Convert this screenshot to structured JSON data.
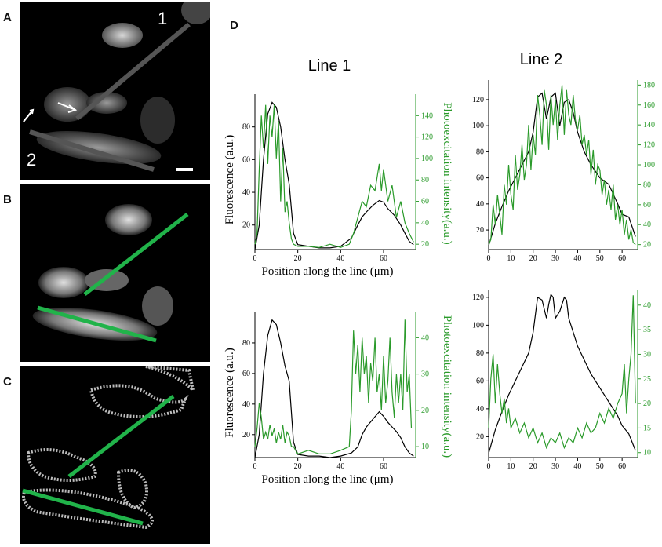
{
  "panels": {
    "a": {
      "label": "A",
      "line1_label": "1",
      "line2_label": "2"
    },
    "b": {
      "label": "B"
    },
    "c": {
      "label": "C"
    },
    "d": {
      "label": "D"
    }
  },
  "colors": {
    "green": "#2a9a2a",
    "line_green": "#21b34a",
    "black": "#000000",
    "gray_line": "#555555"
  },
  "chart_data": [
    {
      "type": "line",
      "id": "top-left",
      "title": "Line 1",
      "xlabel": "Position along the line (μm)",
      "ylabel": "Fluorescence (a.u.)",
      "y2label": "Photoexcitation intensity(a.u.)",
      "xlim": [
        0,
        75
      ],
      "ylim": [
        5,
        100
      ],
      "y2lim": [
        15,
        160
      ],
      "xticks": [
        "0",
        "20",
        "40",
        "60"
      ],
      "yticks": [
        "20",
        "40",
        "60",
        "80"
      ],
      "y2ticks": [
        "20",
        "40",
        "60",
        "80",
        "100",
        "120",
        "140"
      ],
      "series": [
        {
          "axis": "left",
          "color": "black",
          "x": [
            0,
            2,
            4,
            6,
            8,
            10,
            12,
            14,
            16,
            18,
            20,
            25,
            30,
            35,
            40,
            45,
            48,
            50,
            52,
            55,
            58,
            60,
            62,
            65,
            68,
            70,
            72,
            74
          ],
          "values": [
            5,
            20,
            60,
            88,
            95,
            92,
            80,
            60,
            45,
            15,
            8,
            7,
            6,
            6,
            7,
            12,
            20,
            25,
            28,
            32,
            35,
            34,
            30,
            26,
            20,
            15,
            10,
            8
          ]
        },
        {
          "axis": "right",
          "color": "green",
          "x": [
            0,
            1,
            2,
            3,
            4,
            5,
            6,
            7,
            8,
            9,
            10,
            11,
            12,
            13,
            14,
            15,
            16,
            17,
            18,
            20,
            25,
            30,
            35,
            40,
            44,
            46,
            48,
            50,
            52,
            54,
            56,
            58,
            59,
            60,
            62,
            64,
            66,
            68,
            70,
            72,
            74
          ],
          "values": [
            20,
            30,
            90,
            140,
            110,
            150,
            95,
            140,
            120,
            150,
            100,
            135,
            60,
            110,
            50,
            60,
            40,
            25,
            20,
            18,
            18,
            17,
            20,
            17,
            20,
            30,
            45,
            60,
            55,
            75,
            70,
            95,
            70,
            90,
            60,
            75,
            45,
            60,
            40,
            30,
            22
          ]
        }
      ]
    },
    {
      "type": "line",
      "id": "top-right",
      "title": "Line 2",
      "xlim": [
        0,
        67
      ],
      "ylim": [
        5,
        135
      ],
      "y2lim": [
        15,
        185
      ],
      "xticks": [
        "0",
        "10",
        "20",
        "30",
        "40",
        "50",
        "60"
      ],
      "yticks": [
        "20",
        "40",
        "60",
        "80",
        "100",
        "120"
      ],
      "y2ticks": [
        "20",
        "40",
        "60",
        "80",
        "100",
        "120",
        "140",
        "160",
        "180"
      ],
      "series": [
        {
          "axis": "left",
          "color": "black",
          "x": [
            0,
            3,
            6,
            9,
            12,
            15,
            18,
            20,
            22,
            24,
            26,
            28,
            30,
            32,
            34,
            36,
            38,
            40,
            43,
            46,
            50,
            54,
            58,
            60,
            63,
            66
          ],
          "values": [
            8,
            25,
            38,
            50,
            60,
            70,
            80,
            95,
            122,
            125,
            105,
            122,
            125,
            100,
            118,
            120,
            110,
            95,
            80,
            70,
            60,
            55,
            40,
            32,
            30,
            15
          ],
          "shape": "smooth"
        },
        {
          "axis": "right",
          "color": "green",
          "x": [
            0,
            1,
            2,
            3,
            4,
            5,
            6,
            7,
            8,
            9,
            10,
            11,
            12,
            13,
            14,
            15,
            16,
            17,
            18,
            19,
            20,
            21,
            22,
            23,
            24,
            25,
            26,
            27,
            28,
            29,
            30,
            31,
            32,
            33,
            34,
            35,
            36,
            37,
            38,
            39,
            40,
            41,
            42,
            43,
            44,
            45,
            46,
            47,
            48,
            49,
            50,
            51,
            52,
            53,
            54,
            55,
            56,
            57,
            58,
            59,
            60,
            61,
            62,
            63,
            64,
            65,
            66
          ],
          "values": [
            20,
            25,
            60,
            40,
            70,
            50,
            30,
            80,
            60,
            100,
            70,
            55,
            110,
            75,
            90,
            120,
            85,
            100,
            140,
            95,
            130,
            110,
            170,
            150,
            120,
            175,
            160,
            115,
            170,
            140,
            165,
            125,
            160,
            180,
            130,
            175,
            150,
            140,
            170,
            145,
            135,
            150,
            120,
            130,
            110,
            125,
            90,
            115,
            80,
            100,
            95,
            70,
            85,
            60,
            75,
            55,
            80,
            45,
            60,
            40,
            55,
            30,
            45,
            25,
            35,
            22,
            20
          ]
        }
      ]
    },
    {
      "type": "line",
      "id": "bottom-left",
      "title": "Line 1",
      "xlabel": "Position along the line (μm)",
      "ylabel": "Fluorescence (a.u.)",
      "y2label": "Photoexcitation intensity(a.u.)",
      "xlim": [
        0,
        75
      ],
      "ylim": [
        5,
        100
      ],
      "y2lim": [
        7,
        47
      ],
      "xticks": [
        "0",
        "20",
        "40",
        "60"
      ],
      "yticks": [
        "20",
        "40",
        "60",
        "80"
      ],
      "y2ticks": [
        "10",
        "20",
        "30",
        "40"
      ],
      "series": [
        {
          "axis": "left",
          "color": "black",
          "x": [
            0,
            2,
            4,
            6,
            8,
            10,
            12,
            14,
            16,
            18,
            20,
            25,
            30,
            35,
            40,
            45,
            48,
            50,
            52,
            55,
            58,
            60,
            62,
            64,
            66,
            68,
            70,
            72,
            74
          ],
          "values": [
            5,
            20,
            60,
            85,
            95,
            92,
            80,
            65,
            55,
            15,
            7,
            6,
            6,
            5,
            6,
            8,
            12,
            20,
            25,
            30,
            35,
            32,
            28,
            25,
            22,
            18,
            12,
            8,
            6
          ]
        },
        {
          "axis": "right",
          "color": "green",
          "x": [
            0,
            1,
            2,
            3,
            4,
            5,
            6,
            7,
            8,
            9,
            10,
            11,
            12,
            13,
            14,
            15,
            16,
            17,
            18,
            19,
            20,
            25,
            30,
            35,
            40,
            44,
            45,
            46,
            47,
            48,
            49,
            50,
            51,
            52,
            53,
            54,
            55,
            56,
            57,
            58,
            59,
            60,
            61,
            62,
            63,
            64,
            65,
            66,
            67,
            68,
            69,
            70,
            71,
            72,
            73
          ],
          "values": [
            10,
            15,
            22,
            18,
            12,
            14,
            12,
            16,
            13,
            15,
            11,
            14,
            12,
            16,
            11,
            14,
            13,
            10,
            10,
            9,
            8,
            9,
            8,
            8,
            9,
            10,
            20,
            42,
            30,
            38,
            25,
            40,
            30,
            35,
            22,
            33,
            28,
            40,
            25,
            30,
            20,
            35,
            22,
            28,
            40,
            25,
            18,
            30,
            22,
            30,
            20,
            45,
            25,
            30,
            15
          ]
        }
      ]
    },
    {
      "type": "line",
      "id": "bottom-right",
      "xlim": [
        0,
        67
      ],
      "ylim": [
        5,
        125
      ],
      "y2lim": [
        9,
        43
      ],
      "xticks": [
        "0",
        "10",
        "20",
        "30",
        "40",
        "50",
        "60"
      ],
      "yticks": [
        "20",
        "40",
        "60",
        "80",
        "100",
        "120"
      ],
      "y2ticks": [
        "10",
        "15",
        "20",
        "25",
        "30",
        "35",
        "40"
      ],
      "series": [
        {
          "axis": "left",
          "color": "black",
          "x": [
            0,
            3,
            6,
            9,
            12,
            15,
            18,
            20,
            22,
            24,
            26,
            27,
            28,
            29,
            30,
            32,
            34,
            35,
            36,
            38,
            40,
            43,
            46,
            50,
            54,
            58,
            60,
            63,
            66
          ],
          "values": [
            8,
            25,
            38,
            50,
            60,
            70,
            80,
            95,
            120,
            118,
            105,
            115,
            122,
            120,
            105,
            110,
            120,
            118,
            105,
            95,
            85,
            75,
            65,
            55,
            45,
            35,
            28,
            22,
            10
          ],
          "shape": "smooth"
        },
        {
          "axis": "right",
          "color": "green",
          "x": [
            0,
            1,
            2,
            3,
            4,
            5,
            6,
            7,
            8,
            9,
            10,
            12,
            14,
            16,
            18,
            20,
            22,
            24,
            26,
            28,
            30,
            32,
            34,
            36,
            38,
            40,
            42,
            44,
            46,
            48,
            50,
            52,
            54,
            56,
            58,
            60,
            61,
            62,
            63,
            64,
            65,
            66
          ],
          "values": [
            15,
            25,
            30,
            20,
            28,
            22,
            18,
            21,
            16,
            19,
            15,
            17,
            14,
            16,
            13,
            15,
            12,
            14,
            11,
            13,
            12,
            14,
            11,
            13,
            12,
            15,
            13,
            16,
            14,
            15,
            18,
            16,
            19,
            17,
            20,
            22,
            28,
            18,
            25,
            30,
            42,
            20
          ]
        }
      ]
    }
  ]
}
